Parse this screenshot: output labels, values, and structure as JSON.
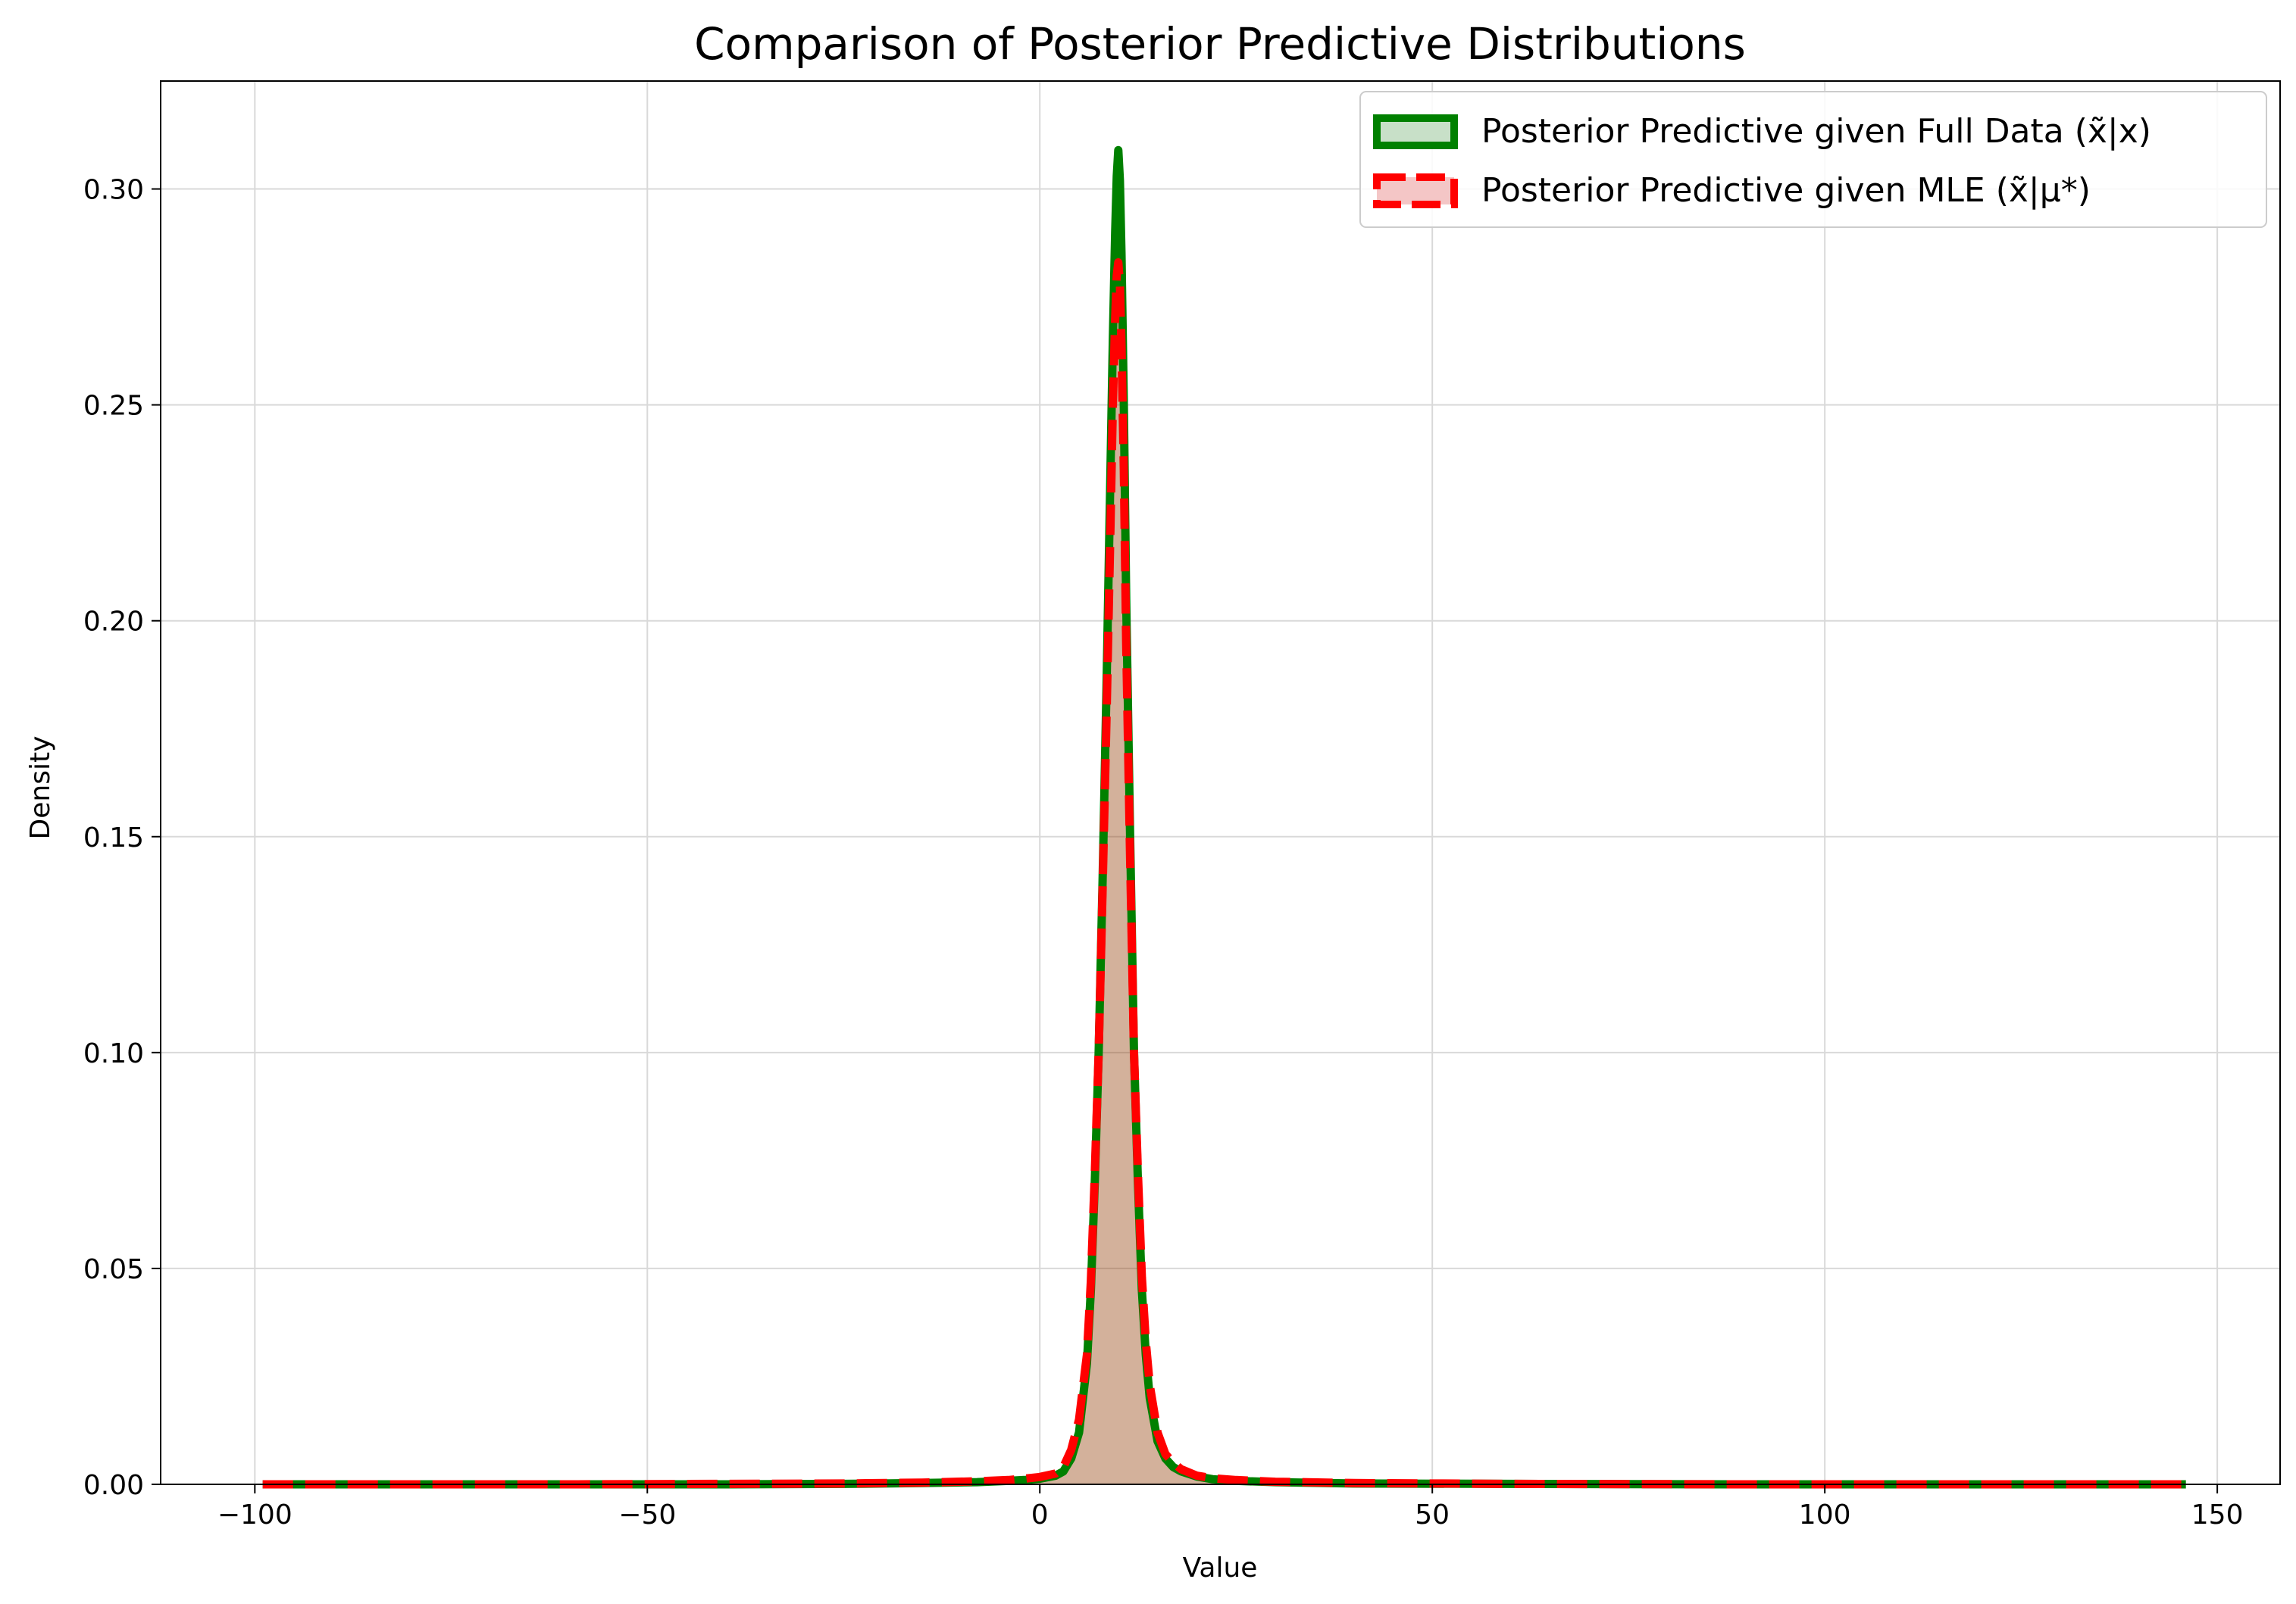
{
  "chart_data": {
    "type": "area",
    "title": "Comparison of Posterior Predictive Distributions",
    "xlabel": "Value",
    "ylabel": "Density",
    "xlim": [
      -112,
      158
    ],
    "ylim": [
      0,
      0.325
    ],
    "xticks": [
      -100,
      -50,
      0,
      50,
      100,
      150
    ],
    "xtick_labels": [
      "−100",
      "−50",
      "0",
      "50",
      "100",
      "150"
    ],
    "yticks": [
      0.0,
      0.05,
      0.1,
      0.15,
      0.2,
      0.25,
      0.3
    ],
    "ytick_labels": [
      "0.00",
      "0.05",
      "0.10",
      "0.15",
      "0.20",
      "0.25",
      "0.30"
    ],
    "grid": true,
    "legend_position": "top-right",
    "series": [
      {
        "name": "Posterior Predictive given Full Data (x̃|x)",
        "color": "#008000",
        "fill": "#c8e0c8",
        "line_style": "solid",
        "x": [
          -99,
          -60,
          -40,
          -25,
          -15,
          -8,
          -4,
          -2,
          0,
          2,
          3,
          4,
          5,
          6,
          6.5,
          7,
          7.5,
          8,
          8.5,
          9,
          9.3,
          9.6,
          9.8,
          10,
          10.2,
          10.4,
          10.7,
          11,
          11.5,
          12,
          12.5,
          13,
          13.5,
          14,
          15,
          16,
          17,
          18,
          20,
          22,
          25,
          30,
          40,
          60,
          90,
          120,
          146
        ],
        "y": [
          0.0,
          0.0,
          0.0,
          0.0001,
          0.0003,
          0.0005,
          0.0008,
          0.001,
          0.0013,
          0.002,
          0.003,
          0.006,
          0.012,
          0.028,
          0.045,
          0.07,
          0.1,
          0.14,
          0.185,
          0.235,
          0.265,
          0.29,
          0.303,
          0.309,
          0.302,
          0.285,
          0.25,
          0.205,
          0.15,
          0.1,
          0.07,
          0.045,
          0.03,
          0.02,
          0.01,
          0.006,
          0.004,
          0.003,
          0.0018,
          0.0012,
          0.0008,
          0.0005,
          0.0002,
          0.0001,
          0.0,
          0.0,
          0.0
        ]
      },
      {
        "name": "Posterior Predictive given MLE (x̃|μ*)",
        "color": "#ff0000",
        "fill": "#f4c6c6",
        "line_style": "dashed",
        "x": [
          -99,
          -60,
          -40,
          -25,
          -15,
          -8,
          -4,
          -2,
          0,
          2,
          3,
          4,
          5,
          6,
          6.5,
          7,
          7.5,
          8,
          8.5,
          9,
          9.3,
          9.6,
          9.8,
          10,
          10.2,
          10.4,
          10.7,
          11,
          11.5,
          12,
          12.5,
          13,
          13.5,
          14,
          15,
          16,
          17,
          18,
          20,
          22,
          25,
          30,
          40,
          60,
          90,
          120,
          146
        ],
        "y": [
          0.0,
          0.0,
          0.0001,
          0.0002,
          0.0004,
          0.0007,
          0.001,
          0.0013,
          0.0017,
          0.0025,
          0.004,
          0.008,
          0.015,
          0.03,
          0.047,
          0.072,
          0.1,
          0.138,
          0.178,
          0.222,
          0.25,
          0.27,
          0.28,
          0.283,
          0.278,
          0.264,
          0.235,
          0.195,
          0.145,
          0.1,
          0.072,
          0.048,
          0.033,
          0.023,
          0.012,
          0.007,
          0.005,
          0.0035,
          0.002,
          0.0014,
          0.001,
          0.0006,
          0.0003,
          0.0001,
          0.0,
          0.0,
          0.0
        ]
      }
    ]
  }
}
